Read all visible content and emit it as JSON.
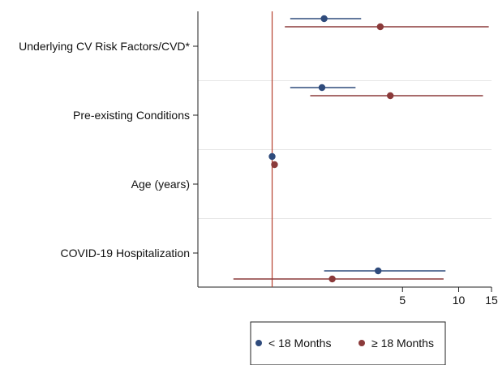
{
  "chart_data": {
    "type": "forest",
    "title": "",
    "xlabel": "",
    "ylabel": "",
    "x_scale": "log",
    "xlim": [
      0.4,
      15
    ],
    "reference_line": 1,
    "x_ticks": [
      5,
      10,
      15
    ],
    "x_tick_labels": [
      "5",
      "10",
      "15"
    ],
    "categories": [
      "Underlying CV Risk Factors/CVD*",
      "Pre-existing Conditions",
      "Age (years)",
      "COVID-19 Hospitalization"
    ],
    "series": [
      {
        "name": "< 18 Months",
        "color": "#2f4b7c",
        "points": [
          {
            "category": "Underlying CV Risk Factors/CVD*",
            "estimate": 1.9,
            "lower": 1.25,
            "upper": 3.0
          },
          {
            "category": "Pre-existing Conditions",
            "estimate": 1.85,
            "lower": 1.25,
            "upper": 2.8
          },
          {
            "category": "Age (years)",
            "estimate": 1.0,
            "lower": 0.99,
            "upper": 1.01
          },
          {
            "category": "COVID-19 Hospitalization",
            "estimate": 3.7,
            "lower": 1.9,
            "upper": 8.5
          }
        ]
      },
      {
        "name": "≥ 18 Months",
        "color": "#8b3a3a",
        "points": [
          {
            "category": "Underlying CV Risk Factors/CVD*",
            "estimate": 3.8,
            "lower": 1.17,
            "upper": 14.5
          },
          {
            "category": "Pre-existing Conditions",
            "estimate": 4.3,
            "lower": 1.6,
            "upper": 13.5
          },
          {
            "category": "Age (years)",
            "estimate": 1.03,
            "lower": 1.02,
            "upper": 1.04
          },
          {
            "category": "COVID-19 Hospitalization",
            "estimate": 2.1,
            "lower": 0.62,
            "upper": 8.3
          }
        ]
      }
    ],
    "legend_position": "bottom",
    "grid": "horizontal-minor"
  }
}
